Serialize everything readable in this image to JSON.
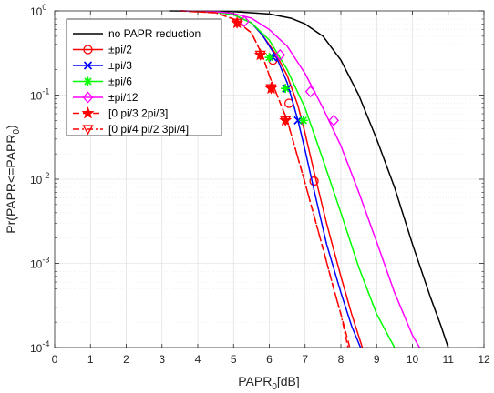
{
  "chart_data": {
    "type": "line",
    "xlabel": "PAPR",
    "xlabel_sub": "0",
    "xlabel_suffix": "[dB]",
    "ylabel": "Pr(PAPR<=PAPR",
    "ylabel_sub": "0",
    "ylabel_suffix": ")",
    "xlim": [
      0,
      12
    ],
    "ylim": [
      0.0001,
      1
    ],
    "yscale": "log",
    "grid": true,
    "legend_position": "top-left",
    "x_ticks": [
      "0",
      "1",
      "2",
      "3",
      "4",
      "5",
      "6",
      "7",
      "8",
      "9",
      "10",
      "11",
      "12"
    ],
    "y_ticks": [
      {
        "base": "10",
        "exp": "0"
      },
      {
        "base": "10",
        "exp": "-1"
      },
      {
        "base": "10",
        "exp": "-2"
      },
      {
        "base": "10",
        "exp": "-3"
      },
      {
        "base": "10",
        "exp": "-4"
      }
    ],
    "series": [
      {
        "name": "no PAPR reduction",
        "color": "#000000",
        "dash": "solid",
        "marker": "none",
        "x": [
          3.2,
          5.0,
          6.0,
          6.6,
          7.0,
          7.5,
          8.0,
          8.5,
          9.0,
          9.5,
          10.0,
          10.5,
          10.8,
          11.0
        ],
        "y": [
          1.0,
          0.98,
          0.92,
          0.82,
          0.7,
          0.5,
          0.26,
          0.1,
          0.03,
          0.008,
          0.0017,
          0.0004,
          0.00018,
          0.0001
        ],
        "marker_x": [],
        "marker_y": []
      },
      {
        "name": "±pi/2",
        "color": "#ff0000",
        "dash": "solid",
        "marker": "circle",
        "x": [
          3.5,
          4.5,
          5.0,
          5.5,
          5.8,
          6.2,
          6.5,
          6.8,
          7.0,
          7.3,
          7.6,
          8.0,
          8.3,
          8.6
        ],
        "y": [
          1.0,
          0.97,
          0.9,
          0.72,
          0.52,
          0.3,
          0.17,
          0.075,
          0.035,
          0.01,
          0.003,
          0.0007,
          0.00025,
          0.0001
        ],
        "marker_x": [
          6.1,
          6.55,
          7.25
        ],
        "marker_y": [
          0.26,
          0.08,
          0.0095
        ]
      },
      {
        "name": "±pi/3",
        "color": "#0000ff",
        "dash": "solid",
        "marker": "x",
        "x": [
          3.5,
          4.5,
          5.0,
          5.5,
          5.8,
          6.2,
          6.5,
          6.8,
          7.0,
          7.3,
          7.6,
          8.0,
          8.3,
          8.55
        ],
        "y": [
          1.0,
          0.97,
          0.9,
          0.72,
          0.52,
          0.28,
          0.14,
          0.05,
          0.022,
          0.006,
          0.0017,
          0.00045,
          0.00018,
          0.0001
        ],
        "marker_x": [
          6.1,
          6.5,
          6.8
        ],
        "marker_y": [
          0.28,
          0.12,
          0.05
        ]
      },
      {
        "name": "±pi/6",
        "color": "#00ff00",
        "dash": "solid",
        "marker": "asterisk",
        "x": [
          3.5,
          4.5,
          5.0,
          5.5,
          6.0,
          6.5,
          7.0,
          7.5,
          8.0,
          8.5,
          9.0,
          9.5
        ],
        "y": [
          1.0,
          0.97,
          0.9,
          0.72,
          0.45,
          0.2,
          0.07,
          0.017,
          0.004,
          0.0009,
          0.00025,
          0.0001
        ],
        "marker_x": [
          6.0,
          6.45,
          6.95
        ],
        "marker_y": [
          0.28,
          0.12,
          0.05
        ]
      },
      {
        "name": "±pi/12",
        "color": "#ff00ff",
        "dash": "solid",
        "marker": "diamond",
        "x": [
          3.5,
          4.5,
          5.0,
          5.5,
          6.0,
          6.5,
          7.0,
          7.5,
          8.0,
          8.5,
          9.0,
          9.5,
          10.0,
          10.2
        ],
        "y": [
          1.0,
          0.98,
          0.93,
          0.82,
          0.6,
          0.38,
          0.18,
          0.07,
          0.025,
          0.007,
          0.0018,
          0.00045,
          0.00014,
          0.0001
        ],
        "marker_x": [
          5.3,
          6.3,
          7.15,
          7.8
        ],
        "marker_y": [
          0.75,
          0.3,
          0.11,
          0.05
        ]
      },
      {
        "name": "[0 pi/3 2pi/3]",
        "color": "#ff0000",
        "dash": "dashed",
        "marker": "star",
        "x": [
          3.5,
          4.5,
          5.0,
          5.5,
          5.8,
          6.0,
          6.5,
          7.0,
          7.5,
          7.8,
          8.0,
          8.25
        ],
        "y": [
          1.0,
          0.95,
          0.8,
          0.55,
          0.3,
          0.17,
          0.05,
          0.009,
          0.0015,
          0.0005,
          0.00025,
          0.0001
        ],
        "marker_x": [
          5.1,
          5.75,
          6.05,
          6.45
        ],
        "marker_y": [
          0.72,
          0.3,
          0.12,
          0.05
        ]
      },
      {
        "name": "[0 pi/4 pi/2 3pi/4]",
        "color": "#ff0000",
        "dash": "dashdot",
        "marker": "triangle-down",
        "x": [
          3.5,
          4.5,
          5.0,
          5.5,
          5.8,
          6.0,
          6.5,
          7.0,
          7.5,
          7.8,
          8.0,
          8.2
        ],
        "y": [
          1.0,
          0.95,
          0.8,
          0.55,
          0.3,
          0.17,
          0.05,
          0.009,
          0.0015,
          0.0005,
          0.00025,
          0.0001
        ],
        "marker_x": [
          5.1,
          5.75,
          6.05,
          6.45
        ],
        "marker_y": [
          0.72,
          0.3,
          0.12,
          0.05
        ]
      }
    ]
  }
}
